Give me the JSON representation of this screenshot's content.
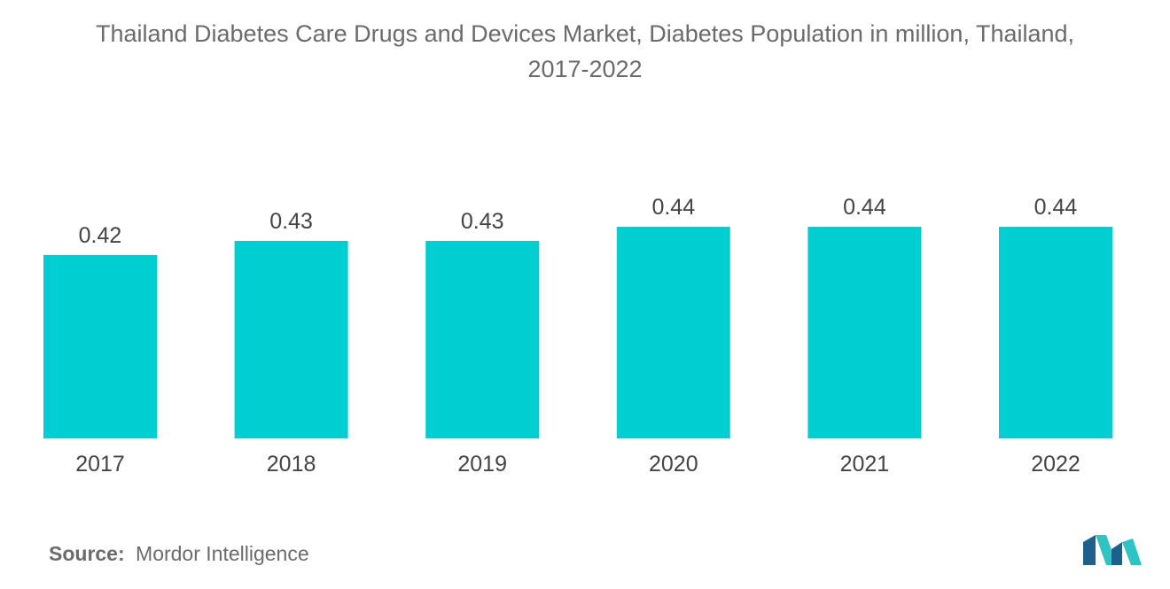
{
  "title_line1": "Thailand Diabetes Care Drugs and Devices Market, Diabetes Population in million, Thailand,",
  "title_line2": "2017-2022",
  "chart_data": {
    "type": "bar",
    "title": "Thailand Diabetes Care Drugs and Devices Market, Diabetes Population in million, Thailand, 2017-2022",
    "categories": [
      "2017",
      "2018",
      "2019",
      "2020",
      "2021",
      "2022"
    ],
    "values": [
      0.42,
      0.43,
      0.43,
      0.44,
      0.44,
      0.44
    ],
    "value_labels": [
      "0.42",
      "0.43",
      "0.43",
      "0.44",
      "0.44",
      "0.44"
    ],
    "xlabel": "",
    "ylabel": "",
    "ylim": [
      0,
      0.44
    ],
    "grid": false,
    "bar_color": "#00CED1"
  },
  "source": {
    "label": "Source:",
    "text": "Mordor Intelligence"
  },
  "logo": {
    "icon": "mordor-intelligence-logo",
    "color_dark": "#1f5f8b",
    "color_light": "#2ec4c4"
  }
}
